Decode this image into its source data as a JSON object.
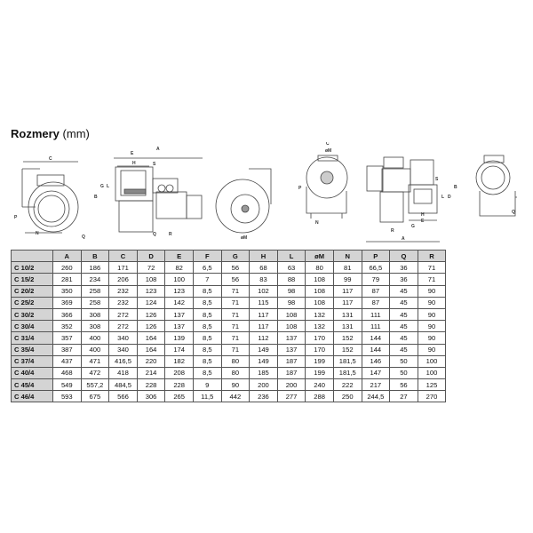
{
  "heading": {
    "title": "Rozmery",
    "unit": "(mm)"
  },
  "drawing_labels": {
    "view1": [
      "C",
      "P",
      "Q",
      "N"
    ],
    "view2": [
      "A",
      "E",
      "H",
      "S",
      "G",
      "L",
      "B",
      "Q",
      "R"
    ],
    "view3": [
      "øM"
    ],
    "view4": [
      "C",
      "øM",
      "P",
      "N"
    ],
    "view5": [
      "S",
      "B",
      "L",
      "D",
      "H",
      "E",
      "G",
      "R",
      "A"
    ],
    "view6": [
      "Q"
    ]
  },
  "table": {
    "headers": [
      "A",
      "B",
      "C",
      "D",
      "E",
      "F",
      "G",
      "H",
      "L",
      "øM",
      "N",
      "P",
      "Q",
      "R"
    ],
    "rows": [
      {
        "model": "C 10/2",
        "values": [
          "260",
          "186",
          "171",
          "72",
          "82",
          "6,5",
          "56",
          "68",
          "63",
          "80",
          "81",
          "66,5",
          "36",
          "71"
        ]
      },
      {
        "model": "C 15/2",
        "values": [
          "281",
          "234",
          "206",
          "108",
          "100",
          "7",
          "56",
          "83",
          "88",
          "108",
          "99",
          "79",
          "36",
          "71"
        ]
      },
      {
        "model": "C 20/2",
        "values": [
          "350",
          "258",
          "232",
          "123",
          "123",
          "8,5",
          "71",
          "102",
          "98",
          "108",
          "117",
          "87",
          "45",
          "90"
        ]
      },
      {
        "model": "C 25/2",
        "values": [
          "369",
          "258",
          "232",
          "124",
          "142",
          "8,5",
          "71",
          "115",
          "98",
          "108",
          "117",
          "87",
          "45",
          "90"
        ]
      },
      {
        "model": "C 30/2",
        "values": [
          "366",
          "308",
          "272",
          "126",
          "137",
          "8,5",
          "71",
          "117",
          "108",
          "132",
          "131",
          "111",
          "45",
          "90"
        ]
      },
      {
        "model": "C 30/4",
        "values": [
          "352",
          "308",
          "272",
          "126",
          "137",
          "8,5",
          "71",
          "117",
          "108",
          "132",
          "131",
          "111",
          "45",
          "90"
        ]
      },
      {
        "model": "C 31/4",
        "values": [
          "357",
          "400",
          "340",
          "164",
          "139",
          "8,5",
          "71",
          "112",
          "137",
          "170",
          "152",
          "144",
          "45",
          "90"
        ]
      },
      {
        "model": "C 35/4",
        "values": [
          "387",
          "400",
          "340",
          "164",
          "174",
          "8,5",
          "71",
          "149",
          "137",
          "170",
          "152",
          "144",
          "45",
          "90"
        ]
      },
      {
        "model": "C 37/4",
        "values": [
          "437",
          "471",
          "416,5",
          "220",
          "182",
          "8,5",
          "80",
          "149",
          "187",
          "199",
          "181,5",
          "146",
          "50",
          "100"
        ]
      },
      {
        "model": "C 40/4",
        "values": [
          "468",
          "472",
          "418",
          "214",
          "208",
          "8,5",
          "80",
          "185",
          "187",
          "199",
          "181,5",
          "147",
          "50",
          "100"
        ]
      },
      {
        "model": "C 45/4",
        "values": [
          "549",
          "557,2",
          "484,5",
          "228",
          "228",
          "9",
          "90",
          "200",
          "200",
          "240",
          "222",
          "217",
          "56",
          "125"
        ]
      },
      {
        "model": "C 46/4",
        "values": [
          "593",
          "675",
          "566",
          "306",
          "265",
          "11,5",
          "442",
          "236",
          "277",
          "288",
          "250",
          "244,5",
          "27",
          "270"
        ]
      }
    ]
  }
}
